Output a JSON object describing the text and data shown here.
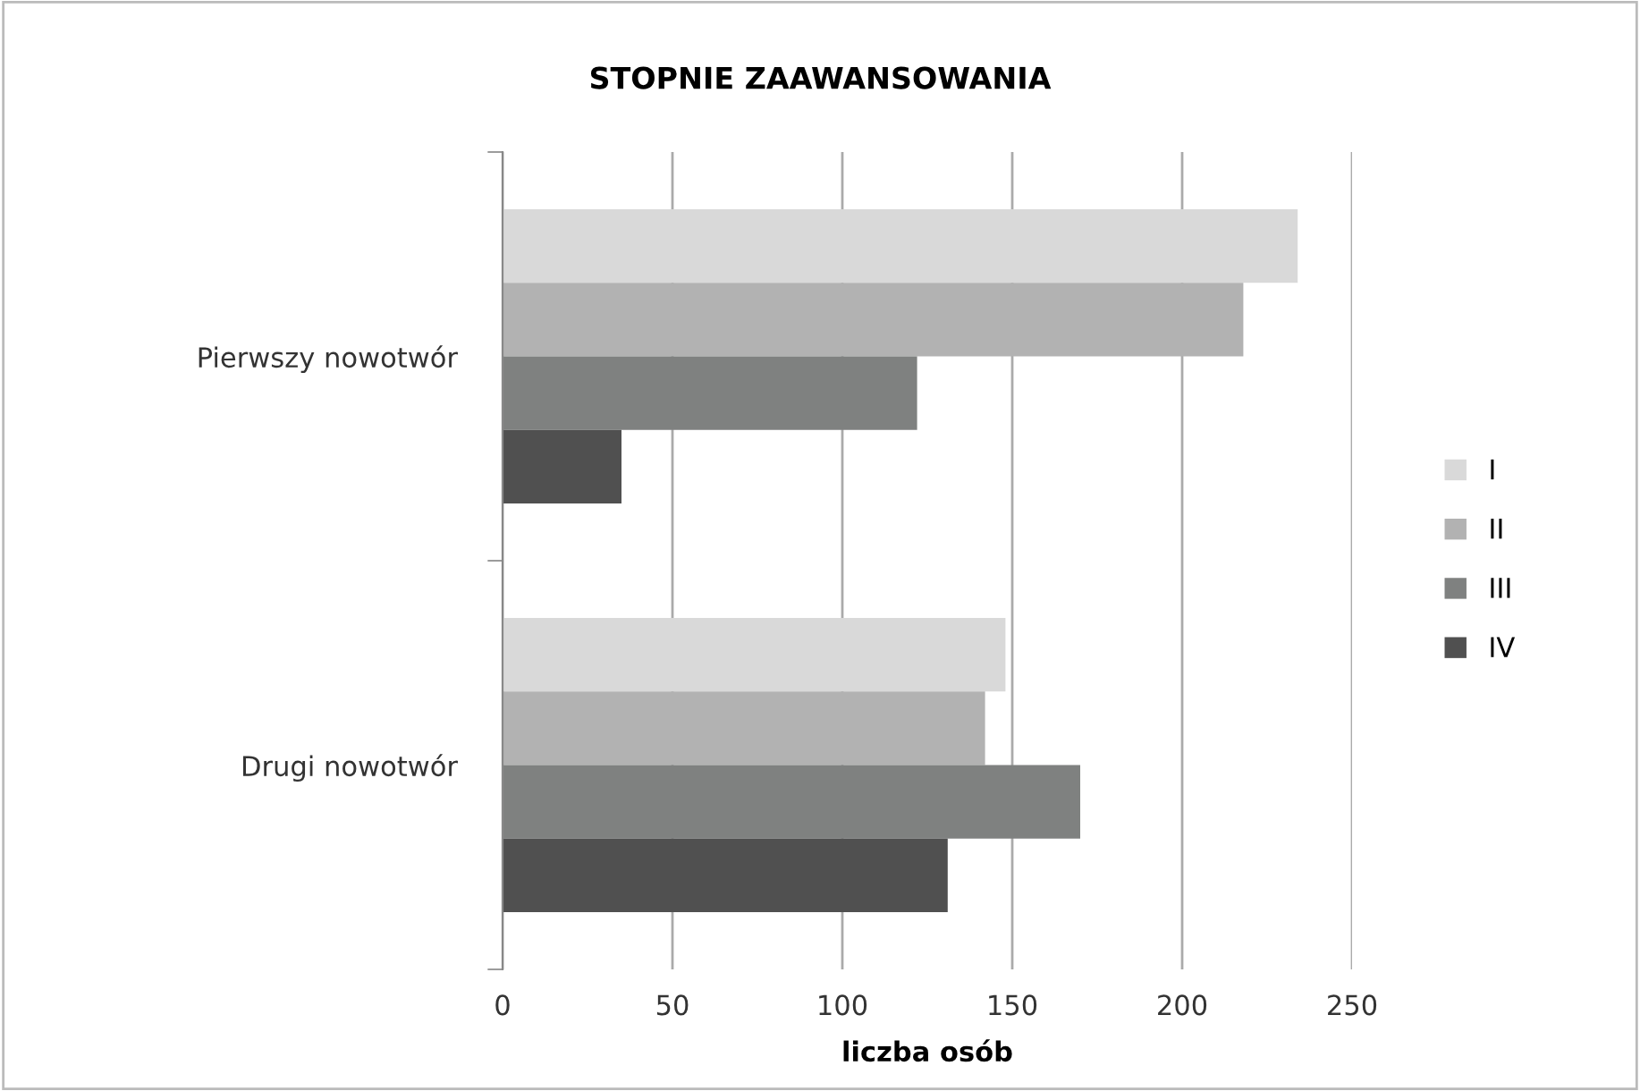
{
  "chart_data": {
    "type": "bar",
    "orientation": "horizontal",
    "title": "STOPNIE ZAAWANSOWANIA",
    "xlabel": "liczba osób",
    "categories": [
      "Pierwszy nowotwór",
      "Drugi nowotwór"
    ],
    "series": [
      {
        "name": "I",
        "color": "#d9d9d9",
        "values": [
          234,
          148
        ]
      },
      {
        "name": "II",
        "color": "#b2b2b2",
        "values": [
          218,
          142
        ]
      },
      {
        "name": "III",
        "color": "#7f8180",
        "values": [
          122,
          170
        ]
      },
      {
        "name": "IV",
        "color": "#505050",
        "values": [
          35,
          131
        ]
      }
    ],
    "xlim": [
      0,
      250
    ],
    "xticks": [
      0,
      50,
      100,
      150,
      200,
      250
    ],
    "grid": "x",
    "legend": "right"
  }
}
